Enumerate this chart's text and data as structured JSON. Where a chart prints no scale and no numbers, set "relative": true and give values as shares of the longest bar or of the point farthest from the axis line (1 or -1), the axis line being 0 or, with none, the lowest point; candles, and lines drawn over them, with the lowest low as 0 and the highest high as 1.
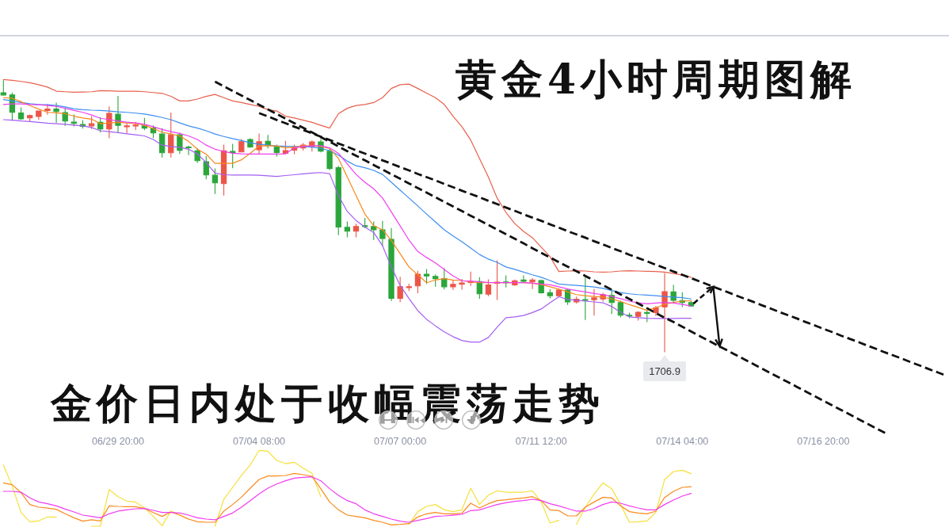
{
  "chart_data": [
    {
      "type": "candlestick",
      "title": "黄金4小时周期图解",
      "subtitle": "金价日内处于收幅震荡走势",
      "relative": true,
      "tick_labels": "x",
      "categories": [
        null,
        null,
        null,
        null,
        null,
        null,
        null,
        null,
        null,
        null,
        null,
        null,
        null,
        "06/29 20:00",
        null,
        null,
        null,
        null,
        null,
        null,
        null,
        null,
        null,
        null,
        null,
        null,
        null,
        null,
        null,
        "07/04 08:00",
        null,
        null,
        null,
        null,
        null,
        null,
        null,
        null,
        null,
        null,
        null,
        null,
        null,
        null,
        null,
        "07/07 00:00",
        null,
        null,
        null,
        null,
        null,
        null,
        null,
        null,
        null,
        null,
        null,
        null,
        null,
        null,
        null,
        "07/11 12:00",
        null,
        null,
        null,
        null,
        null,
        null,
        null,
        null,
        null,
        null,
        null,
        null,
        null,
        null,
        null,
        "07/14 04:00",
        null,
        null,
        null,
        null,
        null,
        null,
        null,
        null,
        null,
        null,
        null,
        null,
        null,
        null,
        null,
        "07/16 20:00",
        null,
        null,
        null,
        null,
        null,
        null,
        null,
        null,
        null,
        null,
        null,
        null,
        null,
        null
      ],
      "ohlc": [
        [
          0.955,
          1.0,
          0.946,
          0.947
        ],
        [
          0.947,
          0.954,
          0.854,
          0.883
        ],
        [
          0.881,
          0.9,
          0.857,
          0.859
        ],
        [
          0.863,
          0.873,
          0.851,
          0.871
        ],
        [
          0.868,
          0.888,
          0.857,
          0.888
        ],
        [
          0.89,
          0.912,
          0.876,
          0.895
        ],
        [
          0.895,
          0.917,
          0.846,
          0.886
        ],
        [
          0.882,
          0.898,
          0.835,
          0.851
        ],
        [
          0.847,
          0.873,
          0.833,
          0.842
        ],
        [
          0.838,
          0.852,
          0.825,
          0.831
        ],
        [
          0.833,
          0.867,
          0.823,
          0.841
        ],
        [
          0.846,
          0.864,
          0.81,
          0.822
        ],
        [
          0.822,
          0.903,
          0.789,
          0.879
        ],
        [
          0.876,
          0.942,
          0.81,
          0.835
        ],
        [
          0.832,
          0.842,
          0.807,
          0.833
        ],
        [
          0.833,
          0.846,
          0.819,
          0.836
        ],
        [
          0.833,
          0.861,
          0.819,
          0.825
        ],
        [
          0.825,
          0.833,
          0.79,
          0.807
        ],
        [
          0.803,
          0.823,
          0.718,
          0.734
        ],
        [
          0.734,
          0.881,
          0.718,
          0.8
        ],
        [
          0.8,
          0.806,
          0.731,
          0.743
        ],
        [
          0.755,
          0.759,
          0.727,
          0.753
        ],
        [
          0.741,
          0.749,
          0.698,
          0.705
        ],
        [
          0.701,
          0.72,
          0.638,
          0.652
        ],
        [
          0.651,
          0.675,
          0.584,
          0.623
        ],
        [
          0.62,
          0.762,
          0.578,
          0.741
        ],
        [
          0.739,
          0.765,
          0.679,
          0.735
        ],
        [
          0.737,
          0.783,
          0.737,
          0.775
        ],
        [
          0.783,
          0.786,
          0.754,
          0.755
        ],
        [
          0.745,
          0.803,
          0.732,
          0.775
        ],
        [
          0.776,
          0.798,
          0.752,
          0.762
        ],
        [
          0.756,
          0.762,
          0.722,
          0.735
        ],
        [
          0.732,
          0.776,
          0.73,
          0.742
        ],
        [
          0.744,
          0.762,
          0.73,
          0.754
        ],
        [
          0.752,
          0.768,
          0.744,
          0.762
        ],
        [
          0.757,
          0.778,
          0.74,
          0.774
        ],
        [
          0.774,
          0.783,
          0.737,
          0.74
        ],
        [
          0.74,
          0.746,
          0.672,
          0.676
        ],
        [
          0.679,
          0.684,
          0.432,
          0.46
        ],
        [
          0.459,
          0.479,
          0.424,
          0.445
        ],
        [
          0.445,
          0.471,
          0.424,
          0.462
        ],
        [
          0.465,
          0.492,
          0.457,
          0.463
        ],
        [
          0.462,
          0.479,
          0.414,
          0.45
        ],
        [
          0.45,
          0.481,
          0.391,
          0.418
        ],
        [
          0.415,
          0.455,
          0.189,
          0.197
        ],
        [
          0.197,
          0.275,
          0.185,
          0.24
        ],
        [
          0.238,
          0.25,
          0.226,
          0.24
        ],
        [
          0.243,
          0.297,
          0.218,
          0.286
        ],
        [
          0.286,
          0.304,
          0.252,
          0.28
        ],
        [
          0.278,
          0.284,
          0.242,
          0.27
        ],
        [
          0.27,
          0.307,
          0.232,
          0.24
        ],
        [
          0.24,
          0.263,
          0.23,
          0.249
        ],
        [
          0.249,
          0.267,
          0.231,
          0.254
        ],
        [
          0.256,
          0.294,
          0.245,
          0.259
        ],
        [
          0.259,
          0.274,
          0.197,
          0.214
        ],
        [
          0.213,
          0.266,
          0.207,
          0.247
        ],
        [
          0.253,
          0.336,
          0.193,
          0.257
        ],
        [
          0.258,
          0.28,
          0.239,
          0.255
        ],
        [
          0.247,
          0.265,
          0.245,
          0.262
        ],
        [
          0.265,
          0.28,
          0.257,
          0.26
        ],
        [
          0.258,
          0.27,
          0.233,
          0.265
        ],
        [
          0.263,
          0.265,
          0.216,
          0.218
        ],
        [
          0.218,
          0.229,
          0.199,
          0.207
        ],
        [
          0.207,
          0.231,
          0.204,
          0.228
        ],
        [
          0.228,
          0.231,
          0.175,
          0.184
        ],
        [
          0.184,
          0.202,
          0.18,
          0.194
        ],
        [
          0.193,
          0.275,
          0.119,
          0.191
        ],
        [
          0.192,
          0.231,
          0.135,
          0.199
        ],
        [
          0.195,
          0.216,
          0.187,
          0.211
        ],
        [
          0.208,
          0.231,
          0.141,
          0.182
        ],
        [
          0.182,
          0.187,
          0.129,
          0.135
        ],
        [
          0.135,
          0.143,
          0.126,
          0.132
        ],
        [
          0.131,
          0.148,
          0.117,
          0.146
        ],
        [
          0.145,
          0.15,
          0.111,
          0.143
        ],
        [
          0.145,
          0.167,
          0.134,
          0.163
        ],
        [
          0.166,
          0.289,
          0,
          0.222
        ],
        [
          0.221,
          0.245,
          0.182,
          0.19
        ],
        [
          0.189,
          0.218,
          0.167,
          0.182
        ],
        [
          0.182,
          0.187,
          0.169,
          0.169
        ],
        null,
        null,
        null,
        null,
        null,
        null,
        null,
        null,
        null,
        null,
        null,
        null,
        null,
        null,
        null,
        null,
        null,
        null,
        null,
        null,
        null,
        null,
        null,
        null,
        null,
        null,
        null,
        null,
        null
      ],
      "colors": [
        "#2aa63a",
        "#2aa63a",
        "#2aa63a",
        "#eb5648",
        "#eb5648",
        "#eb5648",
        "#2aa63a",
        "#2aa63a",
        "#2aa63a",
        "#2aa63a",
        "#eb5648",
        "#2aa63a",
        "#eb5648",
        "#2aa63a",
        "#eb5648",
        "#eb5648",
        "#2aa63a",
        "#2aa63a",
        "#2aa63a",
        "#eb5648",
        "#2aa63a",
        "#2aa63a",
        "#2aa63a",
        "#2aa63a",
        "#2aa63a",
        "#eb5648",
        "#2aa63a",
        "#eb5648",
        "#2aa63a",
        "#eb5648",
        "#2aa63a",
        "#2aa63a",
        "#eb5648",
        "#eb5648",
        "#eb5648",
        "#eb5648",
        "#2aa63a",
        "#2aa63a",
        "#2aa63a",
        "#2aa63a",
        "#eb5648",
        "#2aa63a",
        "#2aa63a",
        "#2aa63a",
        "#2aa63a",
        "#eb5648",
        "#eb5648",
        "#eb5648",
        "#2aa63a",
        "#2aa63a",
        "#2aa63a",
        "#eb5648",
        "#eb5648",
        "#eb5648",
        "#2aa63a",
        "#eb5648",
        "#eb5648",
        "#2aa63a",
        "#eb5648",
        "#2aa63a",
        "#eb5648",
        "#2aa63a",
        "#2aa63a",
        "#eb5648",
        "#2aa63a",
        "#eb5648",
        "#2aa63a",
        "#eb5648",
        "#eb5648",
        "#2aa63a",
        "#2aa63a",
        "#2aa63a",
        "#eb5648",
        "#2aa63a",
        "#eb5648",
        "#eb5648",
        "#2aa63a",
        "#2aa63a",
        "#2aa63a",
        null,
        null,
        null,
        null,
        null,
        null,
        null,
        null,
        null,
        null,
        null,
        null,
        null,
        null,
        null,
        null,
        null,
        null,
        null,
        null,
        null,
        null,
        null,
        null,
        null,
        null,
        null,
        null,
        null
      ],
      "series": [
        {
          "type": "line",
          "color": "#e8604c",
          "values": [
            1.004,
            1.001,
            0.997,
            0.992,
            0.985,
            0.976,
            0.961,
            0.959,
            0.957,
            0.958,
            0.959,
            0.963,
            0.962,
            0.961,
            0.961,
            0.961,
            0.959,
            0.956,
            0.953,
            0.942,
            0.925,
            0.925,
            0.932,
            0.942,
            0.949,
            0.937,
            0.925,
            0.919,
            0.912,
            0.905,
            0.893,
            0.888,
            0.869,
            0.862,
            0.854,
            0.846,
            0.835,
            0.825,
            0.878,
            0.898,
            0.908,
            0.912,
            0.919,
            0.937,
            0.971,
            0.985,
            0.987,
            0.971,
            0.954,
            0.937,
            0.912,
            0.869,
            0.83,
            0.781,
            0.713,
            0.645,
            0.567,
            0.514,
            0.473,
            0.444,
            0.421,
            0.386,
            0.351,
            0.296,
            0.298,
            0.299,
            0.298,
            0.295,
            0.294,
            0.295,
            0.298,
            0.299,
            0.298,
            0.297,
            0.296,
            0.294,
            0.289,
            0.283,
            0.275,
            null,
            null,
            null,
            null,
            null,
            null,
            null,
            null,
            null,
            null,
            null,
            null,
            null,
            null,
            null,
            null,
            null,
            null,
            null,
            null,
            null,
            null,
            null,
            null,
            null,
            null,
            null,
            null,
            null
          ]
        },
        {
          "type": "line",
          "color": "#3d8ef0",
          "values": [
            0.93,
            0.925,
            0.919,
            0.915,
            0.912,
            0.911,
            0.908,
            0.903,
            0.896,
            0.893,
            0.891,
            0.89,
            0.888,
            0.885,
            0.883,
            0.88,
            0.877,
            0.871,
            0.864,
            0.856,
            0.844,
            0.833,
            0.825,
            0.815,
            0.803,
            0.794,
            0.786,
            0.779,
            0.771,
            0.765,
            0.762,
            0.759,
            0.758,
            0.757,
            0.757,
            0.755,
            0.75,
            0.742,
            0.725,
            0.703,
            0.686,
            0.679,
            0.669,
            0.654,
            0.625,
            0.596,
            0.567,
            0.538,
            0.508,
            0.479,
            0.45,
            0.427,
            0.406,
            0.383,
            0.359,
            0.342,
            0.33,
            0.313,
            0.304,
            0.294,
            0.284,
            0.275,
            0.263,
            0.25,
            0.247,
            0.245,
            0.242,
            0.239,
            0.234,
            0.226,
            0.219,
            0.214,
            0.211,
            0.209,
            0.207,
            0.204,
            0.202,
            0.2,
            0.195,
            null,
            null,
            null,
            null,
            null,
            null,
            null,
            null,
            null,
            null,
            null,
            null,
            null,
            null,
            null,
            null,
            null,
            null,
            null,
            null,
            null,
            null,
            null,
            null,
            null,
            null,
            null,
            null,
            null
          ]
        },
        {
          "type": "line",
          "color": "#a35ef2",
          "values": [
            0.856,
            0.854,
            0.851,
            0.849,
            0.846,
            0.843,
            0.841,
            0.839,
            0.836,
            0.833,
            0.827,
            0.815,
            0.812,
            0.808,
            0.804,
            0.8,
            0.796,
            0.783,
            0.762,
            0.757,
            0.754,
            0.747,
            0.73,
            0.698,
            0.659,
            0.653,
            0.652,
            0.652,
            0.652,
            0.651,
            0.649,
            0.647,
            0.65,
            0.653,
            0.656,
            0.659,
            0.661,
            0.657,
            0.576,
            0.518,
            0.484,
            0.46,
            0.44,
            0.391,
            0.313,
            0.245,
            0.197,
            0.152,
            0.12,
            0.096,
            0.074,
            0.056,
            0.042,
            0.036,
            0.036,
            0.053,
            0.091,
            0.126,
            0.129,
            0.134,
            0.145,
            0.158,
            0.181,
            0.203,
            0.193,
            0.19,
            0.187,
            0.184,
            0.181,
            0.167,
            0.146,
            0.129,
            0.126,
            0.124,
            0.123,
            0.123,
            0.123,
            0.124,
            0.124,
            null,
            null,
            null,
            null,
            null,
            null,
            null,
            null,
            null,
            null,
            null,
            null,
            null,
            null,
            null,
            null,
            null,
            null,
            null,
            null,
            null,
            null,
            null,
            null,
            null,
            null,
            null,
            null,
            null
          ]
        },
        {
          "type": "line",
          "color": "#f7891e",
          "values": [
            0.937,
            0.935,
            0.922,
            0.908,
            0.895,
            0.883,
            0.881,
            0.878,
            0.869,
            0.862,
            0.858,
            0.841,
            0.844,
            0.846,
            0.844,
            0.842,
            0.835,
            0.823,
            0.81,
            0.803,
            0.796,
            0.776,
            0.747,
            0.729,
            0.695,
            0.695,
            0.695,
            0.708,
            0.732,
            0.759,
            0.76,
            0.759,
            0.752,
            0.755,
            0.759,
            0.759,
            0.757,
            0.75,
            0.713,
            0.645,
            0.576,
            0.508,
            0.465,
            0.45,
            0.411,
            0.362,
            0.313,
            0.284,
            0.255,
            0.265,
            0.27,
            0.265,
            0.263,
            0.258,
            0.255,
            0.255,
            0.255,
            0.255,
            0.255,
            0.255,
            0.253,
            0.248,
            0.24,
            0.231,
            0.221,
            0.211,
            0.207,
            0.204,
            0.202,
            0.195,
            0.186,
            0.174,
            0.164,
            0.153,
            0.163,
            0.175,
            0.182,
            0.187,
            0.189,
            null,
            null,
            null,
            null,
            null,
            null,
            null,
            null,
            null,
            null,
            null,
            null,
            null,
            null,
            null,
            null,
            null,
            null,
            null,
            null,
            null,
            null,
            null,
            null,
            null,
            null,
            null,
            null,
            null
          ]
        },
        {
          "type": "line",
          "color": "#ef3ff0",
          "values": [
            0.912,
            0.914,
            0.914,
            0.912,
            0.911,
            0.908,
            0.905,
            0.898,
            0.89,
            0.883,
            0.873,
            0.861,
            0.856,
            0.851,
            0.847,
            0.844,
            0.839,
            0.83,
            0.82,
            0.812,
            0.805,
            0.796,
            0.783,
            0.762,
            0.747,
            0.739,
            0.732,
            0.73,
            0.729,
            0.729,
            0.729,
            0.729,
            0.73,
            0.752,
            0.757,
            0.759,
            0.76,
            0.752,
            0.732,
            0.693,
            0.654,
            0.625,
            0.601,
            0.567,
            0.516,
            0.464,
            0.412,
            0.37,
            0.348,
            0.328,
            0.304,
            0.28,
            0.262,
            0.261,
            0.258,
            0.256,
            0.255,
            0.255,
            0.255,
            0.255,
            0.253,
            0.25,
            0.247,
            0.24,
            0.232,
            0.226,
            0.221,
            0.215,
            0.211,
            0.204,
            0.196,
            0.187,
            0.181,
            0.177,
            0.18,
            0.182,
            0.18,
            0.175,
            0.169,
            null,
            null,
            null,
            null,
            null,
            null,
            null,
            null,
            null,
            null,
            null,
            null,
            null,
            null,
            null,
            null,
            null,
            null,
            null,
            null,
            null,
            null,
            null,
            null,
            null,
            null,
            null,
            null,
            null
          ]
        },
        {
          "type": "line",
          "color": "#111111",
          "line_style": "dashed",
          "values": [
            null,
            null,
            null,
            null,
            null,
            null,
            null,
            null,
            null,
            null,
            null,
            null,
            null,
            null,
            null,
            null,
            null,
            null,
            null,
            null,
            null,
            null,
            null,
            null,
            0.996,
            0.979,
            0.962,
            0.945,
            0.928,
            0.911,
            0.894,
            0.877,
            0.86,
            0.843,
            0.826,
            0.809,
            0.792,
            0.775,
            0.757,
            0.74,
            0.723,
            0.706,
            0.689,
            0.672,
            0.655,
            0.638,
            0.621,
            0.604,
            0.587,
            0.57,
            0.553,
            0.536,
            0.519,
            0.502,
            0.485,
            0.468,
            0.451,
            0.434,
            0.417,
            0.4,
            0.382,
            0.365,
            0.348,
            0.331,
            0.314,
            0.297,
            0.28,
            0.263,
            0.246,
            0.229,
            0.212,
            0.195,
            0.178,
            0.161,
            0.143,
            0.126,
            0.11,
            0.093,
            0.075,
            0.058,
            0.041,
            0.024,
            0.007,
            -0.01,
            -0.027,
            -0.044,
            -0.061,
            -0.078,
            -0.095,
            -0.112,
            -0.129,
            -0.146,
            -0.163,
            -0.18,
            -0.197,
            -0.214,
            -0.231,
            -0.248,
            -0.265,
            -0.282,
            -0.299,
            null,
            null,
            null,
            null,
            null,
            null,
            null
          ]
        },
        {
          "type": "line",
          "color": "#111111",
          "line_style": "dashed",
          "values": [
            null,
            null,
            null,
            null,
            null,
            null,
            null,
            null,
            null,
            null,
            null,
            null,
            null,
            null,
            null,
            null,
            null,
            null,
            null,
            null,
            null,
            null,
            null,
            null,
            null,
            null,
            null,
            null,
            null,
            0.88,
            0.868,
            0.855,
            0.843,
            0.83,
            0.818,
            0.806,
            0.793,
            0.781,
            0.768,
            0.756,
            0.743,
            0.731,
            0.719,
            0.706,
            0.694,
            0.681,
            0.669,
            0.656,
            0.644,
            0.632,
            0.619,
            0.607,
            0.594,
            0.582,
            0.57,
            0.557,
            0.545,
            0.532,
            0.52,
            0.507,
            0.495,
            0.483,
            0.47,
            0.458,
            0.445,
            0.433,
            0.421,
            0.408,
            0.396,
            0.383,
            0.371,
            0.358,
            0.346,
            0.334,
            0.321,
            0.309,
            0.296,
            0.284,
            0.272,
            0.259,
            0.247,
            0.234,
            0.222,
            0.209,
            0.197,
            0.185,
            0.172,
            0.16,
            0.147,
            0.135,
            0.123,
            0.11,
            0.098,
            0.085,
            0.073,
            0.06,
            0.048,
            0.036,
            0.023,
            0.011,
            -0.002,
            -0.014,
            -0.026,
            -0.039,
            -0.051,
            -0.064,
            -0.076,
            -0.089
          ]
        }
      ],
      "annotations": [
        {
          "text": "1706.9",
          "y": 0
        }
      ]
    },
    {
      "type": "line",
      "relative": true,
      "categories": [
        null,
        null,
        null,
        null,
        null,
        null,
        null,
        null,
        null,
        null,
        null,
        null,
        null,
        null,
        null,
        null,
        null,
        null,
        null,
        null,
        null,
        null,
        null,
        null,
        null,
        null,
        null,
        null,
        null,
        null,
        null,
        null,
        null,
        null,
        null,
        null,
        null,
        null,
        null,
        null,
        null,
        null,
        null,
        null,
        null,
        null,
        null,
        null,
        null,
        null,
        null,
        null,
        null,
        null,
        null,
        null,
        null,
        null,
        null,
        null,
        null,
        null,
        null,
        null,
        null,
        null,
        null,
        null,
        null,
        null,
        null,
        null,
        null,
        null,
        null,
        null,
        null,
        null,
        null,
        null,
        null,
        null,
        null,
        null,
        null,
        null,
        null,
        null,
        null,
        null,
        null,
        null,
        null,
        null,
        null,
        null,
        null,
        null,
        null,
        null,
        null,
        null,
        null,
        null,
        null,
        null,
        null,
        null
      ],
      "series": [
        {
          "color": "#f5e03a",
          "values": [
            0.808,
            0.529,
            0.181,
            0.059,
            0.07,
            0.122,
            0.118,
            null,
            null,
            null,
            0,
            0,
            0.484,
            0.39,
            0.331,
            0.317,
            0.244,
            0.129,
            0.007,
            0.199,
            0.146,
            0.094,
            null,
            null,
            0,
            0.355,
            0.512,
            0.669,
            0.808,
            1.0,
            0.989,
            0.867,
            0.825,
            0.843,
            0.766,
            0.697,
            0.39,
            null,
            null,
            null,
            null,
            null,
            null,
            null,
            null,
            null,
            0.024,
            0.192,
            0.261,
            0.286,
            0.216,
            0.192,
            0.216,
            0.502,
            0.286,
            0.408,
            0.467,
            0.449,
            0.449,
            0.449,
            0.467,
            0.32,
            0.042,
            0.077,
            null,
            0.024,
            0.251,
            0.425,
            0.571,
            0.495,
            0.286,
            0.052,
            0.059,
            0.07,
            0.181,
            0.617,
            0.721,
            0.738,
            0.693,
            null,
            null,
            null,
            null,
            null,
            null,
            null,
            null,
            null,
            null,
            null,
            null,
            null,
            null,
            null,
            null,
            null,
            null,
            null,
            null,
            null,
            null,
            null,
            null,
            null,
            null,
            null,
            null,
            null
          ]
        },
        {
          "color": "#f98a1c",
          "values": [
            0.571,
            0.547,
            0.442,
            0.286,
            0.251,
            0.24,
            0.223,
            0.164,
            0.111,
            0.066,
            0.084,
            0.07,
            0.268,
            0.261,
            0.258,
            0.258,
            0.233,
            0.181,
            0.129,
            0.188,
            0.146,
            0.094,
            0.059,
            0.052,
            0.052,
            0.199,
            0.286,
            0.383,
            0.502,
            0.617,
            0.662,
            0.662,
            0.669,
            0.697,
            0.679,
            0.658,
            0.495,
            0.32,
            0.216,
            0.146,
            0.129,
            0.111,
            0.077,
            0.052,
            0.017,
            0.024,
            0.035,
            0.122,
            0.164,
            0.181,
            0.164,
            0.164,
            0.171,
            0.303,
            0.24,
            0.296,
            0.338,
            0.348,
            0.362,
            0.373,
            0.39,
            0.338,
            0.216,
            0.206,
            0.136,
            0.136,
            0.251,
            0.32,
            0.38,
            0.373,
            0.268,
            0.192,
            0.174,
            0.164,
            0.199,
            0.38,
            0.46,
            0.512,
            0.522,
            null,
            null,
            null,
            null,
            null,
            null,
            null,
            null,
            null,
            null,
            null,
            null,
            null,
            null,
            null,
            null,
            null,
            null,
            null,
            null,
            null,
            null,
            null,
            null,
            null,
            null,
            null,
            null,
            null
          ]
        },
        {
          "color": "#f03cf0",
          "values": [
            0.46,
            0.46,
            0.449,
            0.373,
            0.32,
            0.296,
            0.268,
            0.226,
            0.188,
            0.146,
            0.129,
            0.111,
            0.164,
            0.199,
            0.216,
            0.23,
            0.233,
            0.209,
            0.181,
            0.181,
            0.174,
            0.146,
            0.111,
            0.094,
            0.084,
            0.129,
            0.174,
            0.251,
            0.338,
            0.425,
            0.502,
            0.557,
            0.599,
            0.634,
            0.644,
            0.651,
            0.599,
            0.495,
            0.408,
            0.338,
            0.296,
            0.216,
            0.164,
            0.129,
            0.094,
            0.066,
            0.052,
            0.077,
            0.101,
            0.129,
            0.136,
            0.146,
            0.157,
            0.206,
            0.216,
            0.251,
            0.286,
            0.31,
            0.327,
            0.338,
            0.355,
            0.338,
            0.296,
            0.268,
            0.233,
            0.199,
            0.199,
            0.233,
            0.286,
            0.32,
            0.303,
            0.268,
            0.24,
            0.216,
            0.216,
            0.286,
            0.345,
            0.397,
            0.432,
            null,
            null,
            null,
            null,
            null,
            null,
            null,
            null,
            null,
            null,
            null,
            null,
            null,
            null,
            null,
            null,
            null,
            null,
            null,
            null,
            null,
            null,
            null,
            null,
            null,
            null,
            null,
            null,
            null
          ]
        }
      ]
    }
  ]
}
